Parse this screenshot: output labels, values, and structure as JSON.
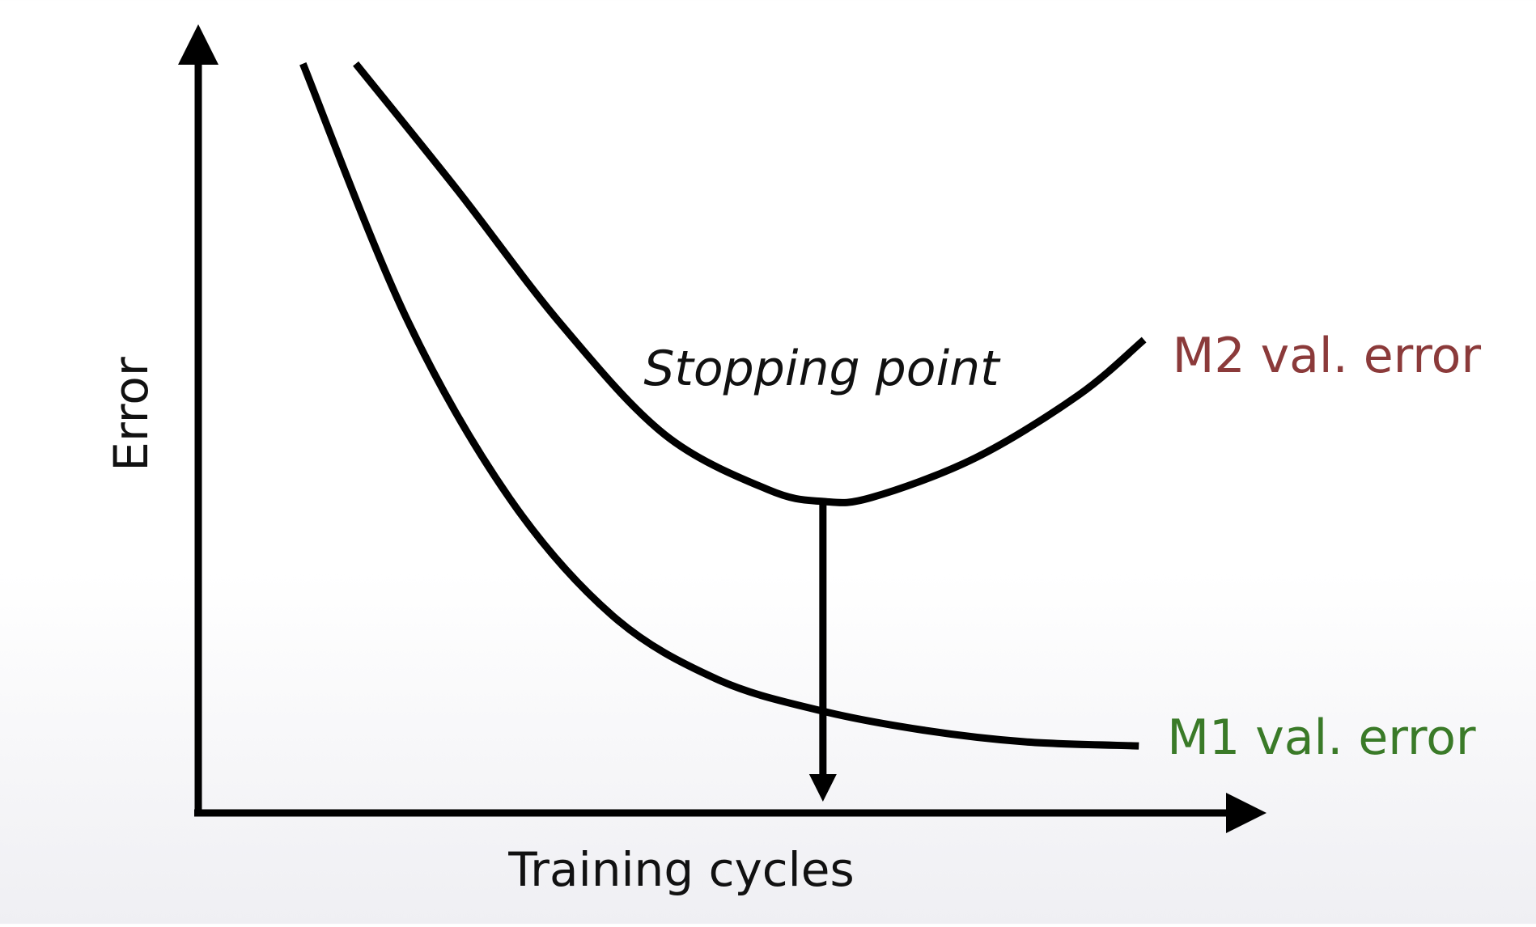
{
  "chart_data": {
    "type": "line",
    "xlabel": "Training cycles",
    "ylabel": "Error",
    "annotation": {
      "text": "Stopping point",
      "x": 0.603
    },
    "xlim": [
      0,
      1
    ],
    "ylim": [
      0,
      1
    ],
    "series": [
      {
        "name": "M2 val. error",
        "color": "#8b3a3a",
        "points": [
          [
            0.152,
            0.95
          ],
          [
            0.25,
            0.79
          ],
          [
            0.35,
            0.62
          ],
          [
            0.45,
            0.48
          ],
          [
            0.55,
            0.41
          ],
          [
            0.603,
            0.395
          ],
          [
            0.65,
            0.4
          ],
          [
            0.75,
            0.45
          ],
          [
            0.85,
            0.53
          ],
          [
            0.913,
            0.6
          ]
        ]
      },
      {
        "name": "M1 val. error",
        "color": "#3a7a28",
        "points": [
          [
            0.101,
            0.95
          ],
          [
            0.2,
            0.63
          ],
          [
            0.3,
            0.4
          ],
          [
            0.4,
            0.25
          ],
          [
            0.5,
            0.17
          ],
          [
            0.6,
            0.13
          ],
          [
            0.7,
            0.105
          ],
          [
            0.8,
            0.09
          ],
          [
            0.908,
            0.085
          ]
        ]
      }
    ]
  }
}
